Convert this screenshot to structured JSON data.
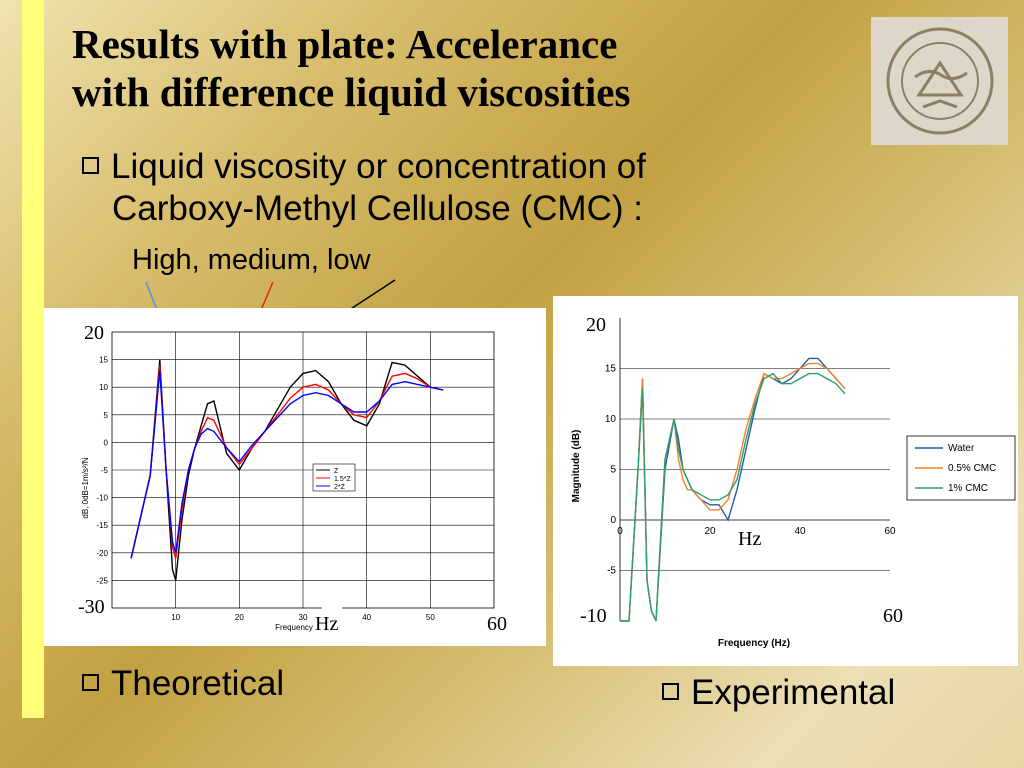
{
  "slide": {
    "title_line1": "Results with plate: Accelerance",
    "title_line2": "with difference liquid viscosities",
    "bullet_main_line1": "Liquid viscosity or concentration of",
    "bullet_main_line2": "Carboxy-Methyl Cellulose (CMC) :",
    "sub_text": "High, medium, low",
    "bullet_theoretical": "Theoretical",
    "bullet_experimental": "Experimental",
    "accent_color": "#ffff7a"
  },
  "chart_data": [
    {
      "type": "line",
      "name_on_chart": "",
      "xlabel": "Frequency",
      "ylabel": "dB, 0dB=1m/s²/N",
      "xlim": [
        0,
        60
      ],
      "ylim": [
        -30,
        20
      ],
      "x_ticks": [
        "10",
        "20",
        "30",
        "40",
        "50"
      ],
      "y_ticks": [
        "15",
        "10",
        "5",
        "0",
        "-5",
        "-10",
        "-15",
        "-20",
        "-25"
      ],
      "overlay_labels": {
        "y_top": "20",
        "y_bottom": "-30",
        "x_end": "60",
        "x_unit": "Hz"
      },
      "legend_entries": [
        "Z",
        "1.5*Z",
        "2*Z"
      ],
      "series": [
        {
          "name": "Z",
          "color": "#000000",
          "x": [
            3,
            6,
            7.5,
            8.5,
            9.5,
            10,
            11,
            12,
            13,
            14,
            15,
            16,
            18,
            20,
            22,
            24,
            26,
            28,
            30,
            32,
            34,
            36,
            38,
            40,
            42,
            44,
            46,
            48,
            50,
            52
          ],
          "y": [
            -21,
            -6,
            15,
            -5,
            -23,
            -25,
            -14,
            -6,
            -1,
            3,
            7,
            7.5,
            -2,
            -5,
            -1,
            2,
            6,
            10,
            12.5,
            13,
            11,
            7,
            4,
            3,
            7,
            14.5,
            14,
            12,
            10,
            9.5
          ]
        },
        {
          "name": "1.5*Z",
          "color": "#ff0000",
          "x": [
            3,
            6,
            7.5,
            8.5,
            9.5,
            10,
            11,
            12,
            13,
            14,
            15,
            16,
            18,
            20,
            22,
            24,
            26,
            28,
            30,
            32,
            34,
            36,
            38,
            40,
            42,
            44,
            46,
            48,
            50,
            52
          ],
          "y": [
            -21,
            -6,
            14,
            -5,
            -19,
            -21,
            -12,
            -5,
            -1,
            2,
            4.5,
            4,
            -1,
            -4,
            -1,
            2,
            5,
            8,
            10,
            10.5,
            9.5,
            7,
            5,
            4.5,
            7.5,
            12,
            12.5,
            11.5,
            10,
            9.5
          ]
        },
        {
          "name": "2*Z",
          "color": "#0000ff",
          "x": [
            3,
            6,
            7.5,
            8.5,
            9.5,
            10,
            11,
            12,
            13,
            14,
            15,
            16,
            18,
            20,
            22,
            24,
            26,
            28,
            30,
            32,
            34,
            36,
            38,
            40,
            42,
            44,
            46,
            48,
            50,
            52
          ],
          "y": [
            -21,
            -6,
            13,
            -5,
            -18,
            -20,
            -11,
            -5,
            -1,
            1.5,
            2.5,
            2,
            -1,
            -3.5,
            -0.5,
            2,
            4.5,
            7,
            8.5,
            9,
            8.5,
            7,
            5.5,
            5.5,
            7.5,
            10.5,
            11,
            10.5,
            10,
            9.5
          ]
        }
      ]
    },
    {
      "type": "line",
      "xlabel": "Frequency (Hz)",
      "ylabel": "Magnitude (dB)",
      "xlim": [
        0,
        60
      ],
      "ylim": [
        -10,
        20
      ],
      "x_ticks": [
        "0",
        "20",
        "40",
        "60"
      ],
      "y_ticks": [
        "15",
        "10",
        "5",
        "0",
        "-5"
      ],
      "overlay_labels": {
        "y_top": "20",
        "y_bottom": "-10",
        "x_end": "60",
        "x_unit": "Hz"
      },
      "legend_entries": [
        "Water",
        "0.5% CMC",
        "1% CMC"
      ],
      "series": [
        {
          "name": "Water",
          "color": "#1f5fa8",
          "x": [
            0,
            2,
            4,
            5,
            6,
            7,
            8,
            10,
            12,
            13,
            14,
            15,
            16,
            18,
            20,
            22,
            24,
            26,
            28,
            30,
            32,
            34,
            36,
            38,
            40,
            42,
            44,
            46,
            48,
            50
          ],
          "y": [
            -10,
            -10,
            5,
            14,
            -6,
            -9,
            -10,
            5,
            10,
            8,
            5,
            4,
            3,
            2,
            1.5,
            1.5,
            0,
            3,
            7,
            11,
            14.5,
            14,
            13.5,
            14,
            15,
            16,
            16,
            15,
            14,
            13
          ]
        },
        {
          "name": "0.5% CMC",
          "color": "#f5822a",
          "x": [
            0,
            2,
            4,
            5,
            6,
            7,
            8,
            10,
            12,
            13,
            14,
            15,
            16,
            18,
            20,
            22,
            24,
            26,
            28,
            30,
            32,
            34,
            36,
            38,
            40,
            42,
            44,
            46,
            48,
            50
          ],
          "y": [
            -10,
            -10,
            5,
            14,
            -6,
            -9,
            -10,
            6,
            10,
            6,
            4,
            3,
            3,
            2,
            1,
            1,
            2,
            5,
            9,
            12,
            14.5,
            14,
            14,
            14.5,
            15,
            15.5,
            15.5,
            15,
            14,
            13
          ]
        },
        {
          "name": "1% CMC",
          "color": "#2e9e6a",
          "x": [
            0,
            2,
            4,
            5,
            6,
            7,
            8,
            10,
            12,
            13,
            14,
            15,
            16,
            18,
            20,
            22,
            24,
            26,
            28,
            30,
            32,
            34,
            36,
            38,
            40,
            42,
            44,
            46,
            48,
            50
          ],
          "y": [
            -10,
            -10,
            5,
            13,
            -6,
            -9,
            -10,
            6,
            10,
            7,
            5,
            4,
            3,
            2.5,
            2,
            2,
            2.5,
            4,
            8,
            11.5,
            14,
            14.5,
            13.5,
            13.5,
            14,
            14.5,
            14.5,
            14,
            13.5,
            12.5
          ]
        }
      ]
    }
  ]
}
